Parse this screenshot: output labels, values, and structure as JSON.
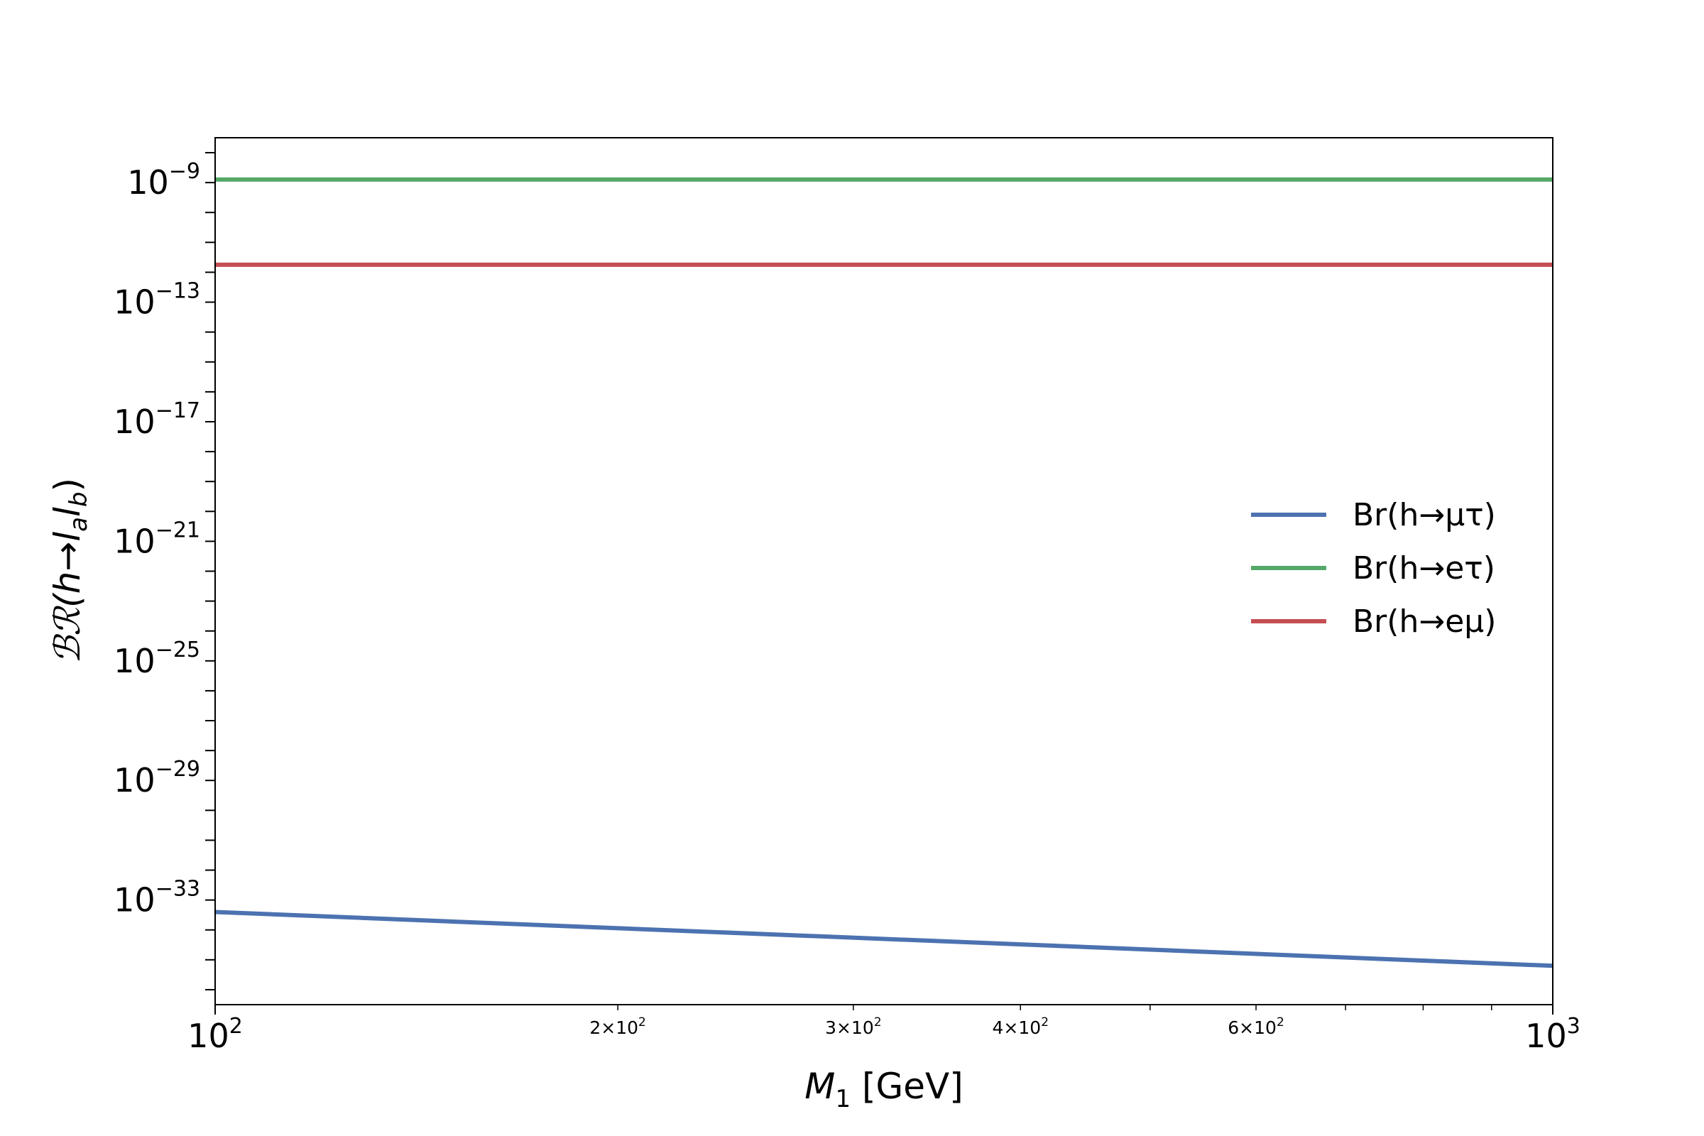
{
  "chart_data": {
    "type": "line",
    "xlabel": "M_1 [GeV]",
    "ylabel": "ℬℛ(h→l_a l_b)",
    "xscale": "log",
    "yscale": "log",
    "xlim": [
      100,
      1000
    ],
    "ylim_exponent": [
      -36.5,
      -7.5
    ],
    "x_ticks": [
      {
        "value": 100,
        "base": "10",
        "exp": "2",
        "major": true
      },
      {
        "value": 200,
        "base": "2×10",
        "exp": "2",
        "major": false
      },
      {
        "value": 300,
        "base": "3×10",
        "exp": "2",
        "major": false
      },
      {
        "value": 400,
        "base": "4×10",
        "exp": "2",
        "major": false
      },
      {
        "value": 600,
        "base": "6×10",
        "exp": "2",
        "major": false
      },
      {
        "value": 1000,
        "base": "10",
        "exp": "3",
        "major": true
      }
    ],
    "y_ticks": [
      {
        "exponent": -9,
        "base": "10",
        "exp": "−9"
      },
      {
        "exponent": -13,
        "base": "10",
        "exp": "−13"
      },
      {
        "exponent": -17,
        "base": "10",
        "exp": "−17"
      },
      {
        "exponent": -21,
        "base": "10",
        "exp": "−21"
      },
      {
        "exponent": -25,
        "base": "10",
        "exp": "−25"
      },
      {
        "exponent": -29,
        "base": "10",
        "exp": "−29"
      },
      {
        "exponent": -33,
        "base": "10",
        "exp": "−33"
      }
    ],
    "series": [
      {
        "name": "Br(h→μτ)",
        "color": "#4c72b0",
        "x": [
          100,
          1000
        ],
        "log10_y": [
          -33.4,
          -35.2
        ]
      },
      {
        "name": "Br(h→eτ)",
        "color": "#55a868",
        "x": [
          100,
          1000
        ],
        "log10_y": [
          -8.9,
          -8.9
        ]
      },
      {
        "name": "Br(h→eμ)",
        "color": "#c44e52",
        "x": [
          100,
          1000
        ],
        "log10_y": [
          -11.75,
          -11.75
        ]
      }
    ],
    "legend_position": "center-right",
    "grid": false
  }
}
